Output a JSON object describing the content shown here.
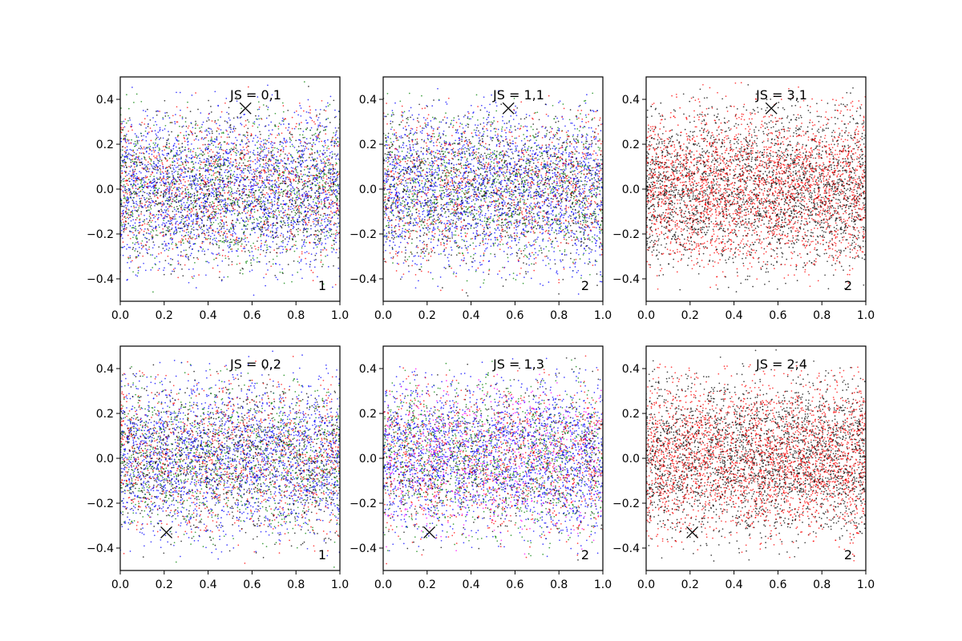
{
  "chart_data": [
    {
      "type": "scatter",
      "title": "JS = 0,1",
      "panel_label": "1",
      "xlim": [
        0.0,
        1.0
      ],
      "ylim": [
        -0.5,
        0.5
      ],
      "xticks": [
        "0.0",
        "0.2",
        "0.4",
        "0.6",
        "0.8",
        "1.0"
      ],
      "yticks": [
        "−0.4",
        "−0.2",
        "0.0",
        "0.2",
        "0.4"
      ],
      "marker": {
        "x": 0.57,
        "y": 0.36,
        "symbol": "x"
      },
      "point_colors": [
        "#0000ff",
        "#008000",
        "#ff0000",
        "#000000"
      ],
      "series": [
        {
          "color": "#0000ff",
          "approx_points": 2000
        },
        {
          "color": "#008000",
          "approx_points": 1000
        },
        {
          "color": "#ff0000",
          "approx_points": 1000
        },
        {
          "color": "#000000",
          "approx_points": 1000
        }
      ],
      "grid": false
    },
    {
      "type": "scatter",
      "title": "JS = 1,1",
      "panel_label": "2",
      "xlim": [
        0.0,
        1.0
      ],
      "ylim": [
        -0.5,
        0.5
      ],
      "xticks": [
        "0.0",
        "0.2",
        "0.4",
        "0.6",
        "0.8",
        "1.0"
      ],
      "yticks": [
        "−0.4",
        "−0.2",
        "0.0",
        "0.2",
        "0.4"
      ],
      "marker": {
        "x": 0.57,
        "y": 0.36,
        "symbol": "x"
      },
      "point_colors": [
        "#0000ff",
        "#008000",
        "#ff0000",
        "#000000"
      ],
      "series": [
        {
          "color": "#0000ff",
          "approx_points": 2000
        },
        {
          "color": "#008000",
          "approx_points": 1000
        },
        {
          "color": "#ff0000",
          "approx_points": 1000
        },
        {
          "color": "#000000",
          "approx_points": 1000
        }
      ],
      "grid": false
    },
    {
      "type": "scatter",
      "title": "JS = 3,1",
      "panel_label": "2",
      "xlim": [
        0.0,
        1.0
      ],
      "ylim": [
        -0.5,
        0.5
      ],
      "xticks": [
        "0.0",
        "0.2",
        "0.4",
        "0.6",
        "0.8",
        "1.0"
      ],
      "yticks": [
        "−0.4",
        "−0.2",
        "0.0",
        "0.2",
        "0.4"
      ],
      "marker": {
        "x": 0.57,
        "y": 0.36,
        "symbol": "x"
      },
      "point_colors": [
        "#ff0000",
        "#000000"
      ],
      "series": [
        {
          "color": "#ff0000",
          "approx_points": 2500
        },
        {
          "color": "#000000",
          "approx_points": 2500
        }
      ],
      "grid": false
    },
    {
      "type": "scatter",
      "title": "JS = 0,2",
      "panel_label": "1",
      "xlim": [
        0.0,
        1.0
      ],
      "ylim": [
        -0.5,
        0.5
      ],
      "xticks": [
        "0.0",
        "0.2",
        "0.4",
        "0.6",
        "0.8",
        "1.0"
      ],
      "yticks": [
        "−0.4",
        "−0.2",
        "0.0",
        "0.2",
        "0.4"
      ],
      "marker": {
        "x": 0.21,
        "y": -0.33,
        "symbol": "x"
      },
      "point_colors": [
        "#0000ff",
        "#008000",
        "#ff0000",
        "#000000"
      ],
      "series": [
        {
          "color": "#0000ff",
          "approx_points": 2000
        },
        {
          "color": "#008000",
          "approx_points": 1000
        },
        {
          "color": "#ff0000",
          "approx_points": 1000
        },
        {
          "color": "#000000",
          "approx_points": 1000
        }
      ],
      "grid": false
    },
    {
      "type": "scatter",
      "title": "JS = 1,3",
      "panel_label": "2",
      "xlim": [
        0.0,
        1.0
      ],
      "ylim": [
        -0.5,
        0.5
      ],
      "xticks": [
        "0.0",
        "0.2",
        "0.4",
        "0.6",
        "0.8",
        "1.0"
      ],
      "yticks": [
        "−0.4",
        "−0.2",
        "0.0",
        "0.2",
        "0.4"
      ],
      "marker": {
        "x": 0.21,
        "y": -0.33,
        "symbol": "x"
      },
      "point_colors": [
        "#0000ff",
        "#008000",
        "#ff0000",
        "#000000",
        "#ff00ff"
      ],
      "series": [
        {
          "color": "#0000ff",
          "approx_points": 2000
        },
        {
          "color": "#008000",
          "approx_points": 1000
        },
        {
          "color": "#ff0000",
          "approx_points": 1000
        },
        {
          "color": "#000000",
          "approx_points": 500
        },
        {
          "color": "#ff00ff",
          "approx_points": 500
        }
      ],
      "grid": false
    },
    {
      "type": "scatter",
      "title": "JS = 2,4",
      "panel_label": "2",
      "xlim": [
        0.0,
        1.0
      ],
      "ylim": [
        -0.5,
        0.5
      ],
      "xticks": [
        "0.0",
        "0.2",
        "0.4",
        "0.6",
        "0.8",
        "1.0"
      ],
      "yticks": [
        "−0.4",
        "−0.2",
        "0.0",
        "0.2",
        "0.4"
      ],
      "marker": {
        "x": 0.21,
        "y": -0.33,
        "symbol": "x"
      },
      "point_colors": [
        "#ff0000",
        "#000000"
      ],
      "series": [
        {
          "color": "#ff0000",
          "approx_points": 2500
        },
        {
          "color": "#000000",
          "approx_points": 2500
        }
      ],
      "grid": false
    }
  ]
}
